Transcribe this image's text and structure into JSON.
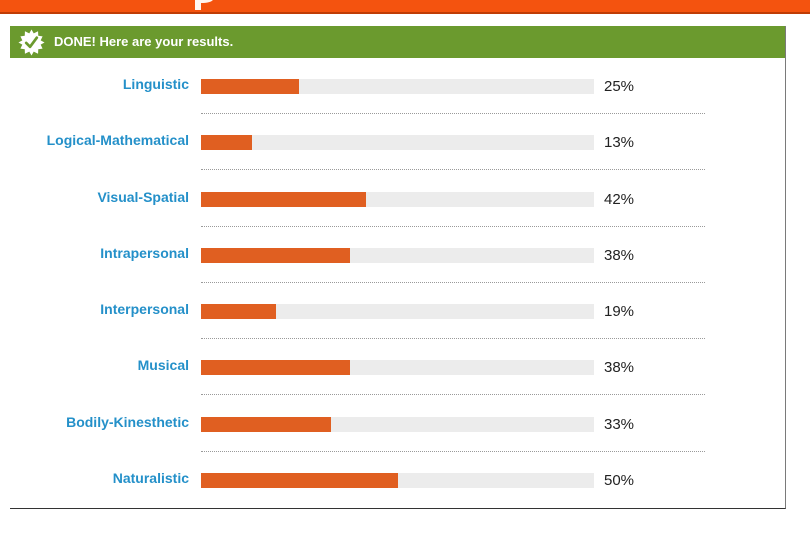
{
  "header": {
    "status_message": "DONE! Here are your results."
  },
  "colors": {
    "top_bar": "#f4530f",
    "banner": "#6b9a2e",
    "label": "#2490c9",
    "bar_fill": "#e05f21",
    "bar_track": "#ececec"
  },
  "icons": {
    "banner": "check-badge-icon"
  },
  "chart_data": {
    "type": "bar",
    "orientation": "horizontal",
    "categories": [
      "Linguistic",
      "Logical-Mathematical",
      "Visual-Spatial",
      "Intrapersonal",
      "Interpersonal",
      "Musical",
      "Bodily-Kinesthetic",
      "Naturalistic"
    ],
    "values": [
      25,
      13,
      42,
      38,
      19,
      38,
      33,
      50
    ],
    "value_labels": [
      "25%",
      "13%",
      "42%",
      "38%",
      "19%",
      "38%",
      "33%",
      "50%"
    ],
    "xlim": [
      0,
      100
    ],
    "title": "",
    "xlabel": "",
    "ylabel": ""
  }
}
